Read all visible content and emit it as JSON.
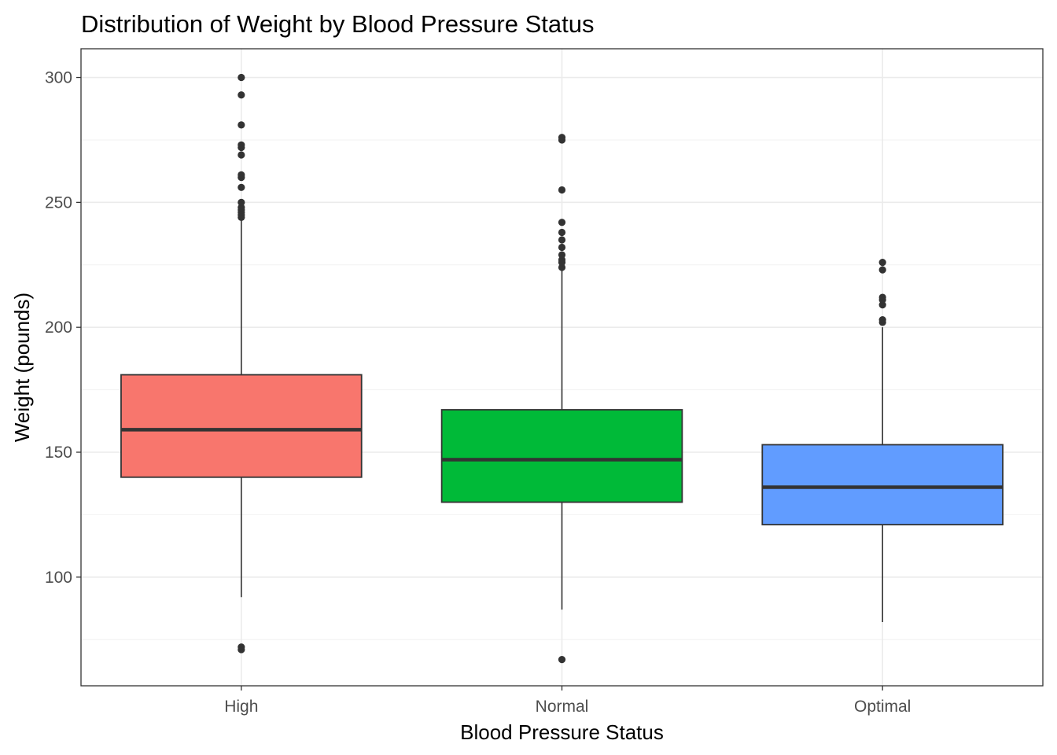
{
  "chart_data": {
    "type": "box",
    "title": "Distribution of Weight by Blood Pressure Status",
    "xlabel": "Blood Pressure Status",
    "ylabel": "Weight (pounds)",
    "categories": [
      "High",
      "Normal",
      "Optimal"
    ],
    "ylim": [
      56.5,
      311.5
    ],
    "y_ticks": [
      100,
      150,
      200,
      250,
      300
    ],
    "y_tick_labels": [
      "100",
      "150",
      "200",
      "250",
      "300"
    ],
    "grid": true,
    "legend": "none",
    "series": [
      {
        "category": "High",
        "color": "#F8766D",
        "whisker_low": 92,
        "q1": 140,
        "median": 159,
        "q3": 181,
        "whisker_high": 243,
        "outliers": [
          71,
          72,
          244,
          245,
          246,
          247,
          248,
          250,
          256,
          260,
          261,
          269,
          272,
          273,
          281,
          293,
          300
        ]
      },
      {
        "category": "Normal",
        "color": "#00BA38",
        "whisker_low": 87,
        "q1": 130,
        "median": 147,
        "q3": 167,
        "whisker_high": 223,
        "outliers": [
          67,
          224,
          226,
          227,
          229,
          232,
          235,
          238,
          242,
          255,
          275,
          276
        ]
      },
      {
        "category": "Optimal",
        "color": "#619CFF",
        "whisker_low": 82,
        "q1": 121,
        "median": 136,
        "q3": 153,
        "whisker_high": 200,
        "outliers": [
          202,
          203,
          209,
          211,
          212,
          223,
          226
        ]
      }
    ]
  }
}
